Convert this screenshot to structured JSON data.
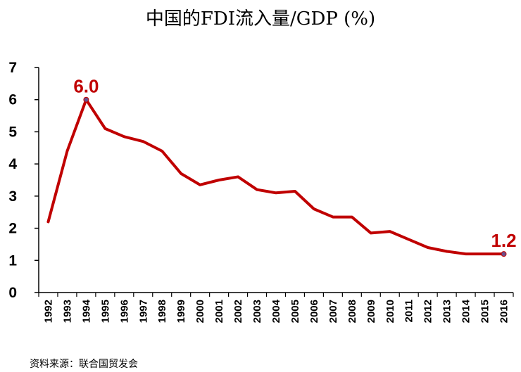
{
  "chart_data": {
    "type": "line",
    "title": "中国的FDI流入量/GDP (%)",
    "x": [
      "1992",
      "1993",
      "1994",
      "1995",
      "1996",
      "1997",
      "1998",
      "1999",
      "2000",
      "2001",
      "2002",
      "2003",
      "2004",
      "2005",
      "2006",
      "2007",
      "2008",
      "2009",
      "2010",
      "2011",
      "2012",
      "2013",
      "2014",
      "2015",
      "2016"
    ],
    "series": [
      {
        "values": [
          2.2,
          4.4,
          6.0,
          5.1,
          4.85,
          4.7,
          4.4,
          3.7,
          3.35,
          3.5,
          3.6,
          3.2,
          3.1,
          3.15,
          2.6,
          2.35,
          2.35,
          1.85,
          1.9,
          1.65,
          1.4,
          1.28,
          1.2,
          1.2,
          1.2
        ],
        "color": "#c00000"
      }
    ],
    "ylim": [
      0,
      7
    ],
    "yticks": [
      "0",
      "1",
      "2",
      "3",
      "4",
      "5",
      "6",
      "7"
    ],
    "data_labels": [
      {
        "x": "1994",
        "text": "6.0"
      },
      {
        "x": "2016",
        "text": "1.2"
      }
    ],
    "grid": false
  },
  "source": "资料来源：联合国贸发会"
}
